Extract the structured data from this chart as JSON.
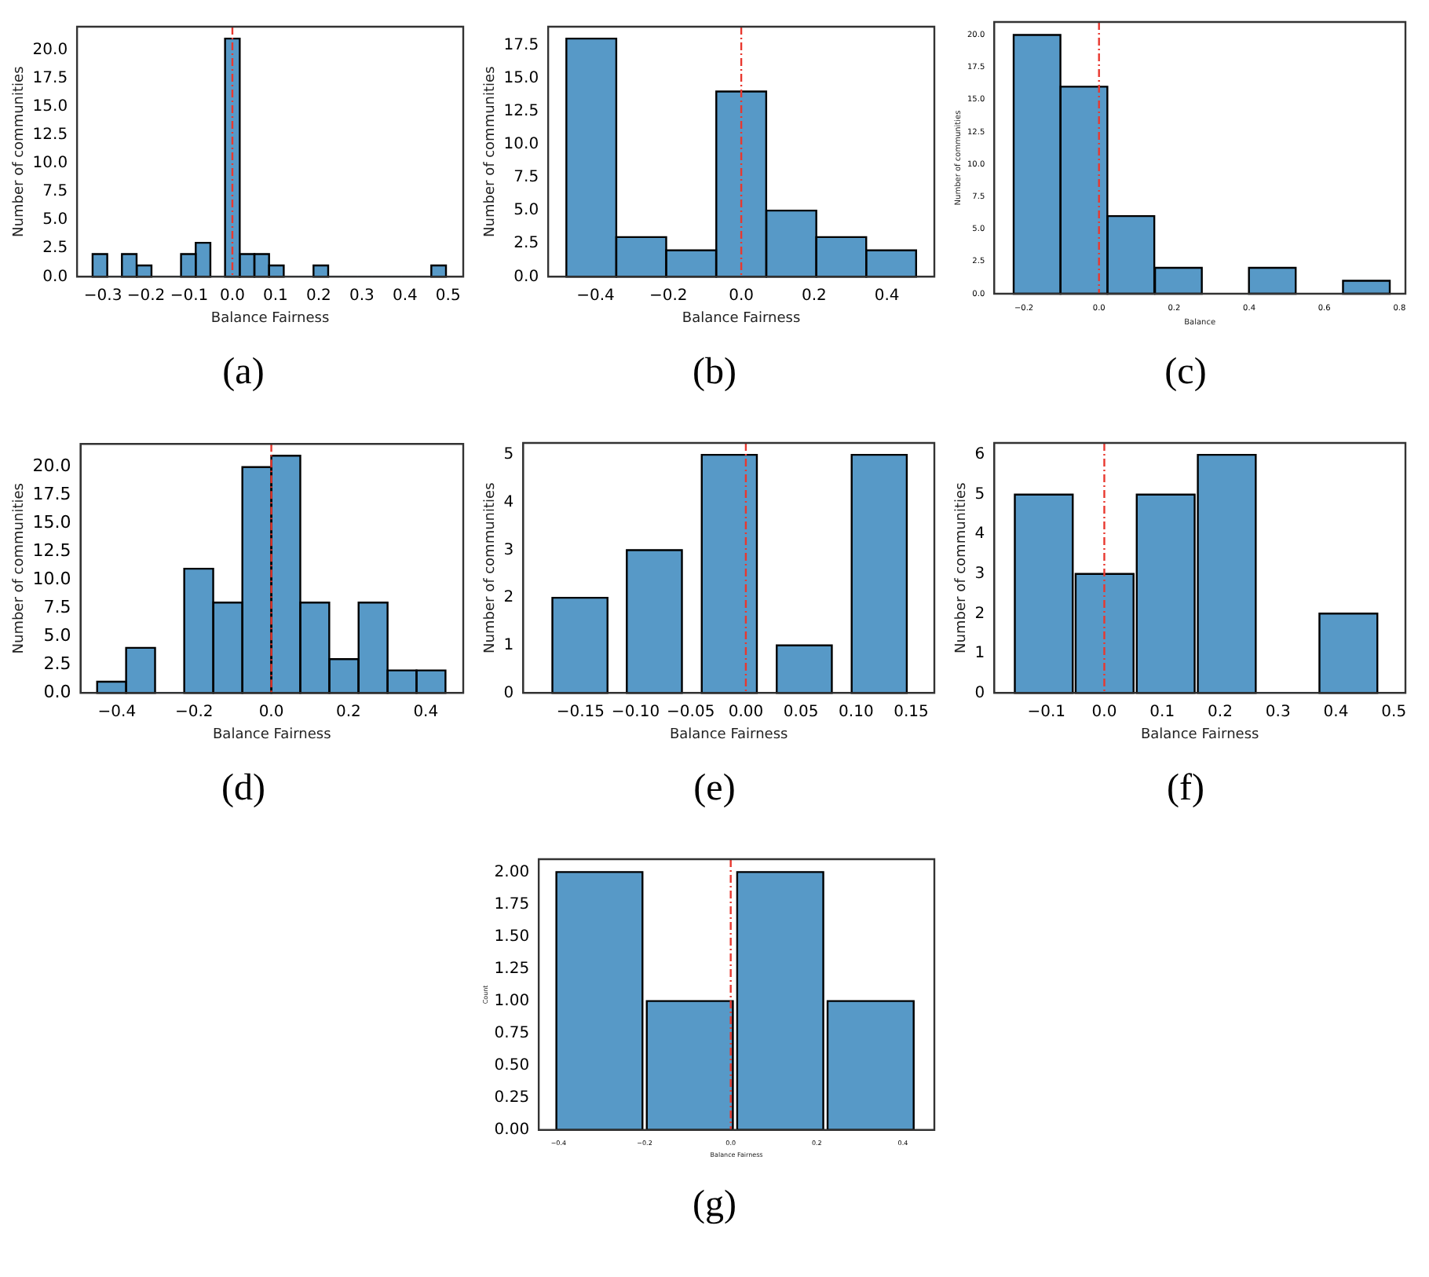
{
  "chart_data": [
    {
      "type": "histogram",
      "title": "(a)",
      "xlabel": "Balance Fairness",
      "ylabel": "Number of communities",
      "color": "#5799c7",
      "bins": [
        -0.324,
        -0.29,
        -0.256,
        -0.222,
        -0.187,
        -0.153,
        -0.119,
        -0.085,
        -0.051,
        -0.017,
        0.017,
        0.051,
        0.085,
        0.119,
        0.153,
        0.188,
        0.222,
        0.256,
        0.29,
        0.324,
        0.358,
        0.392,
        0.427,
        0.461,
        0.495
      ],
      "values": [
        2,
        0,
        2,
        1,
        0,
        0,
        2,
        3,
        0,
        21,
        2,
        2,
        1,
        0,
        0,
        1,
        0,
        0,
        0,
        0,
        0,
        0,
        0,
        1
      ],
      "xlim": [
        -0.36,
        0.535
      ],
      "ylim": [
        0,
        22.05
      ],
      "xticks": [
        {
          "value": -0.3,
          "label": "−0.3"
        },
        {
          "value": -0.2,
          "label": "−0.2"
        },
        {
          "value": -0.1,
          "label": "−0.1"
        },
        {
          "value": 0,
          "label": "0.0"
        },
        {
          "value": 0.1,
          "label": "0.1"
        },
        {
          "value": 0.2,
          "label": "0.2"
        },
        {
          "value": 0.3,
          "label": "0.3"
        },
        {
          "value": 0.4,
          "label": "0.4"
        },
        {
          "value": 0.5,
          "label": "0.5"
        }
      ],
      "yticks": [
        {
          "value": 0,
          "label": "0.0"
        },
        2.5,
        {
          "value": 5,
          "label": "5.0"
        },
        7.5,
        {
          "value": 10,
          "label": "10.0"
        },
        12.5,
        {
          "value": 15,
          "label": "15.0"
        },
        17.5,
        {
          "value": 20,
          "label": "20.0"
        }
      ],
      "ref_lines": [
        {
          "axis": "x",
          "value": 0,
          "color": "#e8382f",
          "line_style": "dashed"
        }
      ]
    },
    {
      "type": "histogram",
      "title": "(b)",
      "xlabel": "Balance Fairness",
      "ylabel": "Number of communities",
      "color": "#5799c7",
      "bins": [
        -0.48,
        -0.343,
        -0.206,
        -0.069,
        0.069,
        0.206,
        0.343,
        0.48
      ],
      "values": [
        18,
        3,
        2,
        14,
        5,
        3,
        2
      ],
      "xlim": [
        -0.53,
        0.53
      ],
      "ylim": [
        0,
        18.9
      ],
      "xticks": [
        {
          "value": -0.4,
          "label": "−0.4"
        },
        {
          "value": -0.2,
          "label": "−0.2"
        },
        {
          "value": 0,
          "label": "0.0"
        },
        {
          "value": 0.2,
          "label": "0.2"
        },
        {
          "value": 0.4,
          "label": "0.4"
        }
      ],
      "yticks": [
        {
          "value": 0,
          "label": "0.0"
        },
        2.5,
        {
          "value": 5,
          "label": "5.0"
        },
        7.5,
        {
          "value": 10,
          "label": "10.0"
        },
        12.5,
        {
          "value": 15,
          "label": "15.0"
        },
        17.5
      ],
      "ref_lines": [
        {
          "axis": "x",
          "value": 0,
          "color": "#e8382f",
          "line_style": "dashed"
        }
      ]
    },
    {
      "type": "histogram",
      "title": "(c)",
      "xlabel": "Balance",
      "ylabel": "Number of communities",
      "color": "#5799c7",
      "bins": [
        -0.228,
        -0.102,
        0.022,
        0.148,
        0.275,
        0.399,
        0.524,
        0.65,
        0.774
      ],
      "values": [
        20,
        16,
        6,
        2,
        0,
        2,
        0,
        1
      ],
      "xlim": [
        -0.279,
        0.816
      ],
      "ylim": [
        0,
        21
      ],
      "xticks": [
        {
          "value": -0.2,
          "label": "−0.2"
        },
        {
          "value": 0,
          "label": "0.0"
        },
        {
          "value": 0.2,
          "label": "0.2"
        },
        {
          "value": 0.4,
          "label": "0.4"
        },
        {
          "value": 0.6,
          "label": "0.6"
        },
        {
          "value": 0.8,
          "label": "0.8"
        }
      ],
      "yticks": [
        {
          "value": 0,
          "label": "0.0"
        },
        2.5,
        {
          "value": 5,
          "label": "5.0"
        },
        7.5,
        {
          "value": 10,
          "label": "10.0"
        },
        12.5,
        {
          "value": 15,
          "label": "15.0"
        },
        17.5,
        {
          "value": 20,
          "label": "20.0"
        }
      ],
      "ref_lines": [
        {
          "axis": "x",
          "value": 0,
          "color": "#e8382f",
          "line_style": "dashed"
        }
      ]
    },
    {
      "type": "histogram",
      "title": "(d)",
      "xlabel": "Balance Fairness",
      "ylabel": "Number of communities",
      "color": "#5799c7",
      "bins": [
        -0.451,
        -0.376,
        -0.301,
        -0.226,
        -0.15,
        -0.075,
        0,
        0.075,
        0.15,
        0.226,
        0.301,
        0.376,
        0.451
      ],
      "values": [
        1,
        4,
        0,
        11,
        8,
        20,
        21,
        8,
        3,
        8,
        2,
        2
      ],
      "xlim": [
        -0.494,
        0.497
      ],
      "ylim": [
        0,
        22.05
      ],
      "xticks": [
        {
          "value": -0.4,
          "label": "−0.4"
        },
        {
          "value": -0.2,
          "label": "−0.2"
        },
        {
          "value": 0,
          "label": "0.0"
        },
        {
          "value": 0.2,
          "label": "0.2"
        },
        {
          "value": 0.4,
          "label": "0.4"
        }
      ],
      "yticks": [
        {
          "value": 0,
          "label": "0.0"
        },
        2.5,
        {
          "value": 5,
          "label": "5.0"
        },
        7.5,
        {
          "value": 10,
          "label": "10.0"
        },
        12.5,
        {
          "value": 15,
          "label": "15.0"
        },
        17.5,
        {
          "value": 20,
          "label": "20.0"
        }
      ],
      "ref_lines": [
        {
          "axis": "x",
          "value": 0,
          "color": "#e8382f",
          "line_style": "dashed"
        }
      ]
    },
    {
      "type": "histogram",
      "title": "(e)",
      "xlabel": "Balance Fairness",
      "ylabel": "Number of communities",
      "color": "#5799c7",
      "bins": [
        -0.184,
        -0.117,
        -0.049,
        0.019,
        0.087,
        0.155
      ],
      "values": [
        2,
        3,
        5,
        1,
        5
      ],
      "xlim": [
        -0.202,
        0.171
      ],
      "ylim": [
        0,
        5.25
      ],
      "xticks": [
        {
          "value": -0.15,
          "label": "−0.15"
        },
        {
          "value": -0.1,
          "label": "−0.10"
        },
        {
          "value": -0.05,
          "label": "−0.05"
        },
        {
          "value": 0,
          "label": "0.00"
        },
        {
          "value": 0.05,
          "label": "0.05"
        },
        {
          "value": 0.1,
          "label": "0.10"
        },
        {
          "value": 0.15,
          "label": "0.15"
        }
      ],
      "yticks": [
        0,
        1,
        2,
        3,
        4,
        5
      ],
      "ref_lines": [
        {
          "axis": "x",
          "value": 0,
          "color": "#e8382f",
          "line_style": "dashed"
        }
      ]
    },
    {
      "type": "histogram",
      "title": "(f)",
      "xlabel": "Balance Fairness",
      "ylabel": "Number of communities",
      "color": "#5799c7",
      "bins": [
        -0.157,
        -0.052,
        0.053,
        0.159,
        0.264,
        0.369,
        0.474
      ],
      "values": [
        5,
        3,
        5,
        6,
        0,
        2
      ],
      "xlim": [
        -0.19,
        0.52
      ],
      "ylim": [
        0,
        6.3
      ],
      "xticks": [
        {
          "value": -0.1,
          "label": "−0.1"
        },
        {
          "value": 0,
          "label": "0.0"
        },
        {
          "value": 0.1,
          "label": "0.1"
        },
        {
          "value": 0.2,
          "label": "0.2"
        },
        {
          "value": 0.3,
          "label": "0.3"
        },
        {
          "value": 0.4,
          "label": "0.4"
        },
        {
          "value": 0.5,
          "label": "0.5"
        }
      ],
      "yticks": [
        0,
        1,
        2,
        3,
        4,
        5,
        6
      ],
      "ref_lines": [
        {
          "axis": "x",
          "value": 0,
          "color": "#e8382f",
          "line_style": "dashed"
        }
      ]
    },
    {
      "type": "histogram",
      "title": "(g)",
      "xlabel": "Balance Fairness",
      "ylabel": "Count",
      "color": "#5799c7",
      "bins": [
        -0.41,
        -0.2,
        0.01,
        0.22,
        0.43
      ],
      "values": [
        2,
        1,
        2,
        1
      ],
      "xlim": [
        -0.446,
        0.473
      ],
      "ylim": [
        0,
        2.1
      ],
      "xticks": [
        {
          "value": -0.4,
          "label": "−0.4"
        },
        {
          "value": -0.2,
          "label": "−0.2"
        },
        {
          "value": 0,
          "label": "0.0"
        },
        {
          "value": 0.2,
          "label": "0.2"
        },
        {
          "value": 0.4,
          "label": "0.4"
        }
      ],
      "yticks": [
        {
          "value": 0,
          "label": "0.00"
        },
        0.25,
        {
          "value": 0.5,
          "label": "0.50"
        },
        0.75,
        {
          "value": 1,
          "label": "1.00"
        },
        1.25,
        {
          "value": 1.5,
          "label": "1.50"
        },
        1.75,
        {
          "value": 2,
          "label": "2.00"
        }
      ],
      "ref_lines": [
        {
          "axis": "x",
          "value": 0,
          "color": "#e8382f",
          "line_style": "dashed"
        }
      ]
    }
  ]
}
